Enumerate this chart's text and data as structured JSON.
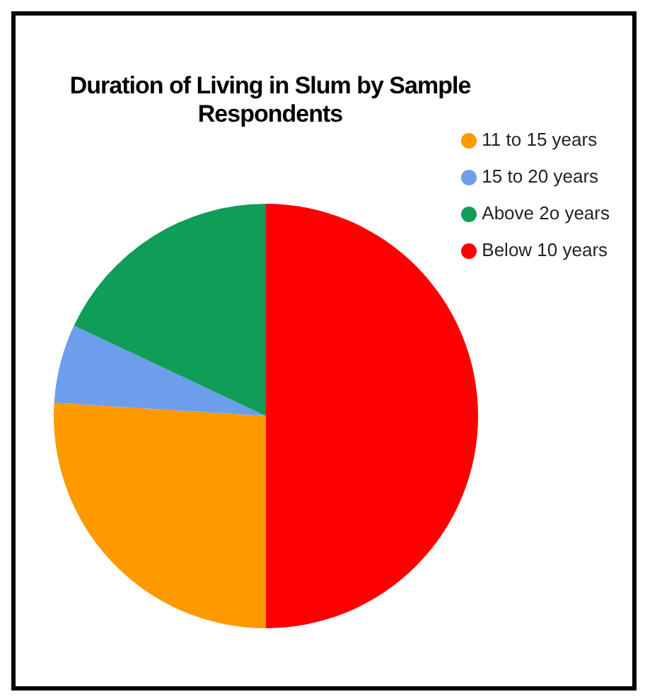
{
  "chart_data": {
    "type": "pie",
    "title": "Duration of Living in Slum by Sample Respondents",
    "categories": [
      "Below 10 years",
      "11 to 15 years",
      "15 to 20 years",
      "Above 2o years"
    ],
    "values": [
      50,
      26,
      6,
      18
    ],
    "colors": [
      "#ff0000",
      "#ff9900",
      "#6d9eeb",
      "#0f9d58"
    ],
    "legend": "top right"
  }
}
